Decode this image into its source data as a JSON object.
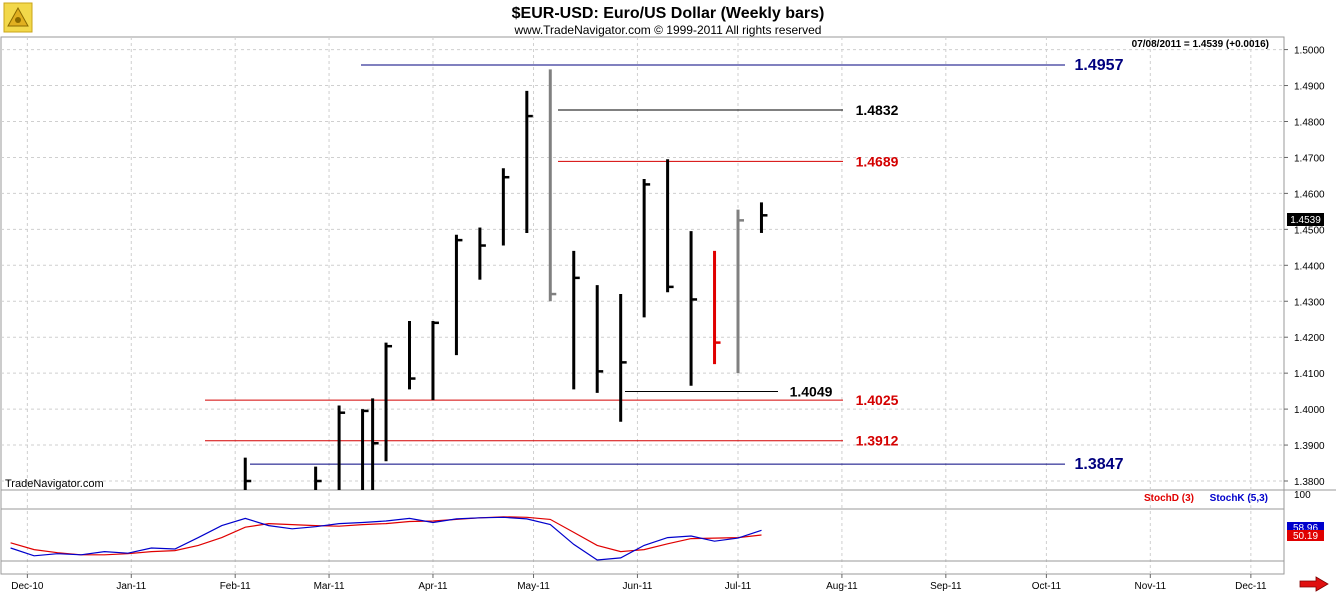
{
  "header": {
    "title": "$EUR-USD:  Euro/US Dollar  (Weekly bars)",
    "copyright": "www.TradeNavigator.com © 1999-2011 All rights reserved",
    "last_quote": "07/08/2011 = 1.4539 (+0.0016)",
    "watermark": "TradeNavigator.com"
  },
  "colors": {
    "up_bar": "#000000",
    "down_bar": "#808080",
    "highlight_bar": "#e00000",
    "blue_level": "#00007f",
    "red_level": "#d40000",
    "black_level": "#000000",
    "stoch_d": "#e00000",
    "stoch_k": "#0000cc"
  },
  "chart_data": [
    {
      "type": "bar",
      "subtype": "ohlc",
      "title": "$EUR-USD:  Euro/US Dollar  (Weekly bars)",
      "x_tick_labels": [
        "Dec-10",
        "Jan-11",
        "Feb-11",
        "Mar-11",
        "Apr-11",
        "May-11",
        "Jun-11",
        "Jul-11",
        "Aug-11",
        "Sep-11",
        "Oct-11",
        "Nov-11",
        "Dec-11"
      ],
      "y_tick_labels": [
        "1.5000",
        "1.4900",
        "1.4800",
        "1.4700",
        "1.4600",
        "1.4500",
        "1.4400",
        "1.4300",
        "1.4200",
        "1.4100",
        "1.4000",
        "1.3900",
        "1.3800"
      ],
      "ylim": [
        1.3775,
        1.5035
      ],
      "grid": true,
      "last_value_label": "1.4539",
      "bars": [
        {
          "date": "2011-02-04",
          "high": 1.3865,
          "low": 1.3775,
          "close": 1.38,
          "color": "up_bar"
        },
        {
          "date": "2011-02-25",
          "high": 1.384,
          "low": 1.3775,
          "close": 1.38,
          "color": "up_bar"
        },
        {
          "date": "2011-03-04",
          "high": 1.401,
          "low": 1.3775,
          "close": 1.399,
          "color": "up_bar"
        },
        {
          "date": "2011-03-11",
          "high": 1.4,
          "low": 1.3775,
          "close": 1.3995,
          "color": "up_bar"
        },
        {
          "date": "2011-03-14",
          "high": 1.403,
          "low": 1.3775,
          "close": 1.3905,
          "color": "up_bar"
        },
        {
          "date": "2011-03-18",
          "high": 1.4185,
          "low": 1.3855,
          "close": 1.4175,
          "color": "up_bar"
        },
        {
          "date": "2011-03-25",
          "high": 1.4245,
          "low": 1.4055,
          "close": 1.4085,
          "color": "up_bar"
        },
        {
          "date": "2011-04-01",
          "high": 1.4245,
          "low": 1.4025,
          "close": 1.424,
          "color": "up_bar"
        },
        {
          "date": "2011-04-08",
          "high": 1.4485,
          "low": 1.415,
          "close": 1.447,
          "color": "up_bar"
        },
        {
          "date": "2011-04-15",
          "high": 1.4505,
          "low": 1.436,
          "close": 1.4455,
          "color": "up_bar"
        },
        {
          "date": "2011-04-22",
          "high": 1.467,
          "low": 1.4455,
          "close": 1.4645,
          "color": "up_bar"
        },
        {
          "date": "2011-04-29",
          "high": 1.4885,
          "low": 1.449,
          "close": 1.4815,
          "color": "up_bar"
        },
        {
          "date": "2011-05-06",
          "high": 1.4945,
          "low": 1.43,
          "close": 1.432,
          "color": "down_bar"
        },
        {
          "date": "2011-05-13",
          "high": 1.444,
          "low": 1.4055,
          "close": 1.4365,
          "color": "up_bar"
        },
        {
          "date": "2011-05-20",
          "high": 1.4345,
          "low": 1.4045,
          "close": 1.4105,
          "color": "up_bar"
        },
        {
          "date": "2011-05-27",
          "high": 1.432,
          "low": 1.3965,
          "close": 1.413,
          "color": "up_bar"
        },
        {
          "date": "2011-06-03",
          "high": 1.464,
          "low": 1.4255,
          "close": 1.4625,
          "color": "up_bar"
        },
        {
          "date": "2011-06-10",
          "high": 1.4695,
          "low": 1.4325,
          "close": 1.434,
          "color": "up_bar"
        },
        {
          "date": "2011-06-17",
          "high": 1.4495,
          "low": 1.4065,
          "close": 1.4305,
          "color": "up_bar"
        },
        {
          "date": "2011-06-24",
          "high": 1.444,
          "low": 1.4125,
          "close": 1.4185,
          "color": "highlight_bar"
        },
        {
          "date": "2011-07-01",
          "high": 1.4555,
          "low": 1.41,
          "close": 1.4525,
          "color": "down_bar"
        },
        {
          "date": "2011-07-08",
          "high": 1.4575,
          "low": 1.449,
          "close": 1.4539,
          "color": "up_bar"
        }
      ],
      "levels": [
        {
          "value": 1.4957,
          "label": "1.4957",
          "color": "blue_level"
        },
        {
          "value": 1.4832,
          "label": "1.4832",
          "color": "black_level"
        },
        {
          "value": 1.4689,
          "label": "1.4689",
          "color": "red_level"
        },
        {
          "value": 1.4049,
          "label": "1.4049",
          "color": "black_level"
        },
        {
          "value": 1.4025,
          "label": "1.4025",
          "color": "red_level"
        },
        {
          "value": 1.3912,
          "label": "1.3912",
          "color": "red_level"
        },
        {
          "value": 1.3847,
          "label": "1.3847",
          "color": "blue_level"
        }
      ]
    },
    {
      "type": "line",
      "legend": [
        "StochD (3)",
        "StochK (5,3)"
      ],
      "ylim": [
        0,
        100
      ],
      "y_tick_labels": [
        "100"
      ],
      "last_values": {
        "stoch_k": "58.96",
        "stoch_d": "50.19"
      },
      "series": [
        {
          "name": "StochD (3)",
          "color": "stoch_d",
          "points": [
            [
              "2010-11-26",
              35
            ],
            [
              "2010-12-03",
              22
            ],
            [
              "2010-12-10",
              16
            ],
            [
              "2010-12-17",
              12
            ],
            [
              "2010-12-24",
              12
            ],
            [
              "2010-12-31",
              14
            ],
            [
              "2011-01-07",
              18
            ],
            [
              "2011-01-14",
              20
            ],
            [
              "2011-01-21",
              30
            ],
            [
              "2011-01-28",
              45
            ],
            [
              "2011-02-04",
              65
            ],
            [
              "2011-02-11",
              72
            ],
            [
              "2011-02-18",
              70
            ],
            [
              "2011-02-25",
              68
            ],
            [
              "2011-03-04",
              67
            ],
            [
              "2011-03-11",
              70
            ],
            [
              "2011-03-18",
              72
            ],
            [
              "2011-03-25",
              76
            ],
            [
              "2011-04-01",
              77
            ],
            [
              "2011-04-08",
              80
            ],
            [
              "2011-04-15",
              83
            ],
            [
              "2011-04-22",
              85
            ],
            [
              "2011-04-29",
              84
            ],
            [
              "2011-05-06",
              80
            ],
            [
              "2011-05-13",
              55
            ],
            [
              "2011-05-20",
              30
            ],
            [
              "2011-05-27",
              18
            ],
            [
              "2011-06-03",
              22
            ],
            [
              "2011-06-10",
              33
            ],
            [
              "2011-06-17",
              43
            ],
            [
              "2011-06-24",
              44
            ],
            [
              "2011-07-01",
              45
            ],
            [
              "2011-07-08",
              50
            ]
          ]
        },
        {
          "name": "StochK (5,3)",
          "color": "stoch_k",
          "points": [
            [
              "2010-11-26",
              25
            ],
            [
              "2010-12-03",
              10
            ],
            [
              "2010-12-10",
              14
            ],
            [
              "2010-12-17",
              12
            ],
            [
              "2010-12-24",
              18
            ],
            [
              "2010-12-31",
              15
            ],
            [
              "2011-01-07",
              25
            ],
            [
              "2011-01-14",
              23
            ],
            [
              "2011-01-21",
              45
            ],
            [
              "2011-01-28",
              68
            ],
            [
              "2011-02-04",
              82
            ],
            [
              "2011-02-11",
              68
            ],
            [
              "2011-02-18",
              62
            ],
            [
              "2011-02-25",
              66
            ],
            [
              "2011-03-04",
              72
            ],
            [
              "2011-03-11",
              74
            ],
            [
              "2011-03-18",
              77
            ],
            [
              "2011-03-25",
              82
            ],
            [
              "2011-04-01",
              74
            ],
            [
              "2011-04-08",
              81
            ],
            [
              "2011-04-15",
              83
            ],
            [
              "2011-04-22",
              84
            ],
            [
              "2011-04-29",
              81
            ],
            [
              "2011-05-06",
              70
            ],
            [
              "2011-05-13",
              32
            ],
            [
              "2011-05-20",
              2
            ],
            [
              "2011-05-27",
              6
            ],
            [
              "2011-06-03",
              30
            ],
            [
              "2011-06-10",
              45
            ],
            [
              "2011-06-17",
              48
            ],
            [
              "2011-06-24",
              38
            ],
            [
              "2011-07-01",
              44
            ],
            [
              "2011-07-08",
              59
            ]
          ]
        }
      ]
    }
  ]
}
